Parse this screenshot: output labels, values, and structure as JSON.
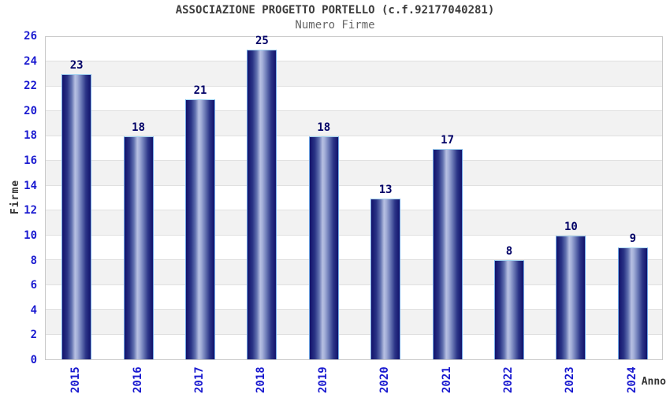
{
  "chart_data": {
    "type": "bar",
    "title": "ASSOCIAZIONE PROGETTO PORTELLO (c.f.92177040281)",
    "subtitle": "Numero Firme",
    "xlabel": "Anno",
    "ylabel": "Firme",
    "categories": [
      "2015",
      "2016",
      "2017",
      "2018",
      "2019",
      "2020",
      "2021",
      "2022",
      "2023",
      "2024"
    ],
    "values": [
      23,
      18,
      21,
      25,
      18,
      13,
      17,
      8,
      10,
      9
    ],
    "ylim": [
      0,
      26
    ],
    "ytick_step": 2,
    "grid": true,
    "legend": "none",
    "band_pattern": "alternating white / light-gray every 2 units",
    "colors": {
      "bar_dark": "#12126b",
      "bar_light": "#b7c0e2",
      "bar_border": "#70a8e6",
      "bar_cap": "#a5d5f2",
      "band_gray": "#f2f2f2",
      "grid_line": "#e0e0e0",
      "plot_border": "#c8c8c8",
      "tick_text": "#1b1bd0",
      "value_text": "#000066",
      "title_text": "#3c3c3c",
      "subtitle_text": "#666666",
      "axis_text": "#333333"
    }
  }
}
